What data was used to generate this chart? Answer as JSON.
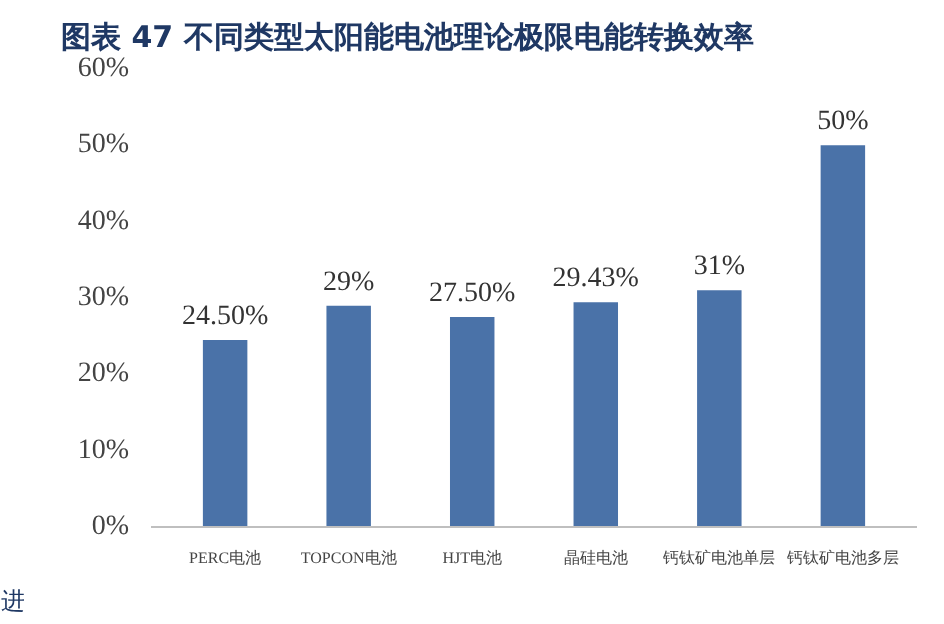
{
  "chart_data": {
    "type": "bar",
    "title": "图表 47 不同类型太阳能电池理论极限电能转换效率",
    "categories": [
      "PERC电池",
      "TOPCON电池",
      "HJT电池",
      "晶硅电池",
      "钙钛矿电池单层",
      "钙钛矿电池多层"
    ],
    "values": [
      24.5,
      29,
      27.5,
      29.43,
      31,
      50
    ],
    "value_labels": [
      "24.50%",
      "29%",
      "27.50%",
      "29.43%",
      "31%",
      "50%"
    ],
    "color": "#4a72a8",
    "ylim": [
      0,
      60
    ],
    "yticks": [
      {
        "value": 0,
        "label": "0%"
      },
      {
        "value": 10,
        "label": "10%"
      },
      {
        "value": 20,
        "label": "20%"
      },
      {
        "value": 30,
        "label": "30%"
      },
      {
        "value": 40,
        "label": "40%"
      },
      {
        "value": 50,
        "label": "50%"
      },
      {
        "value": 60,
        "label": "60%"
      }
    ],
    "grid": false,
    "annotations": [
      "进"
    ]
  }
}
